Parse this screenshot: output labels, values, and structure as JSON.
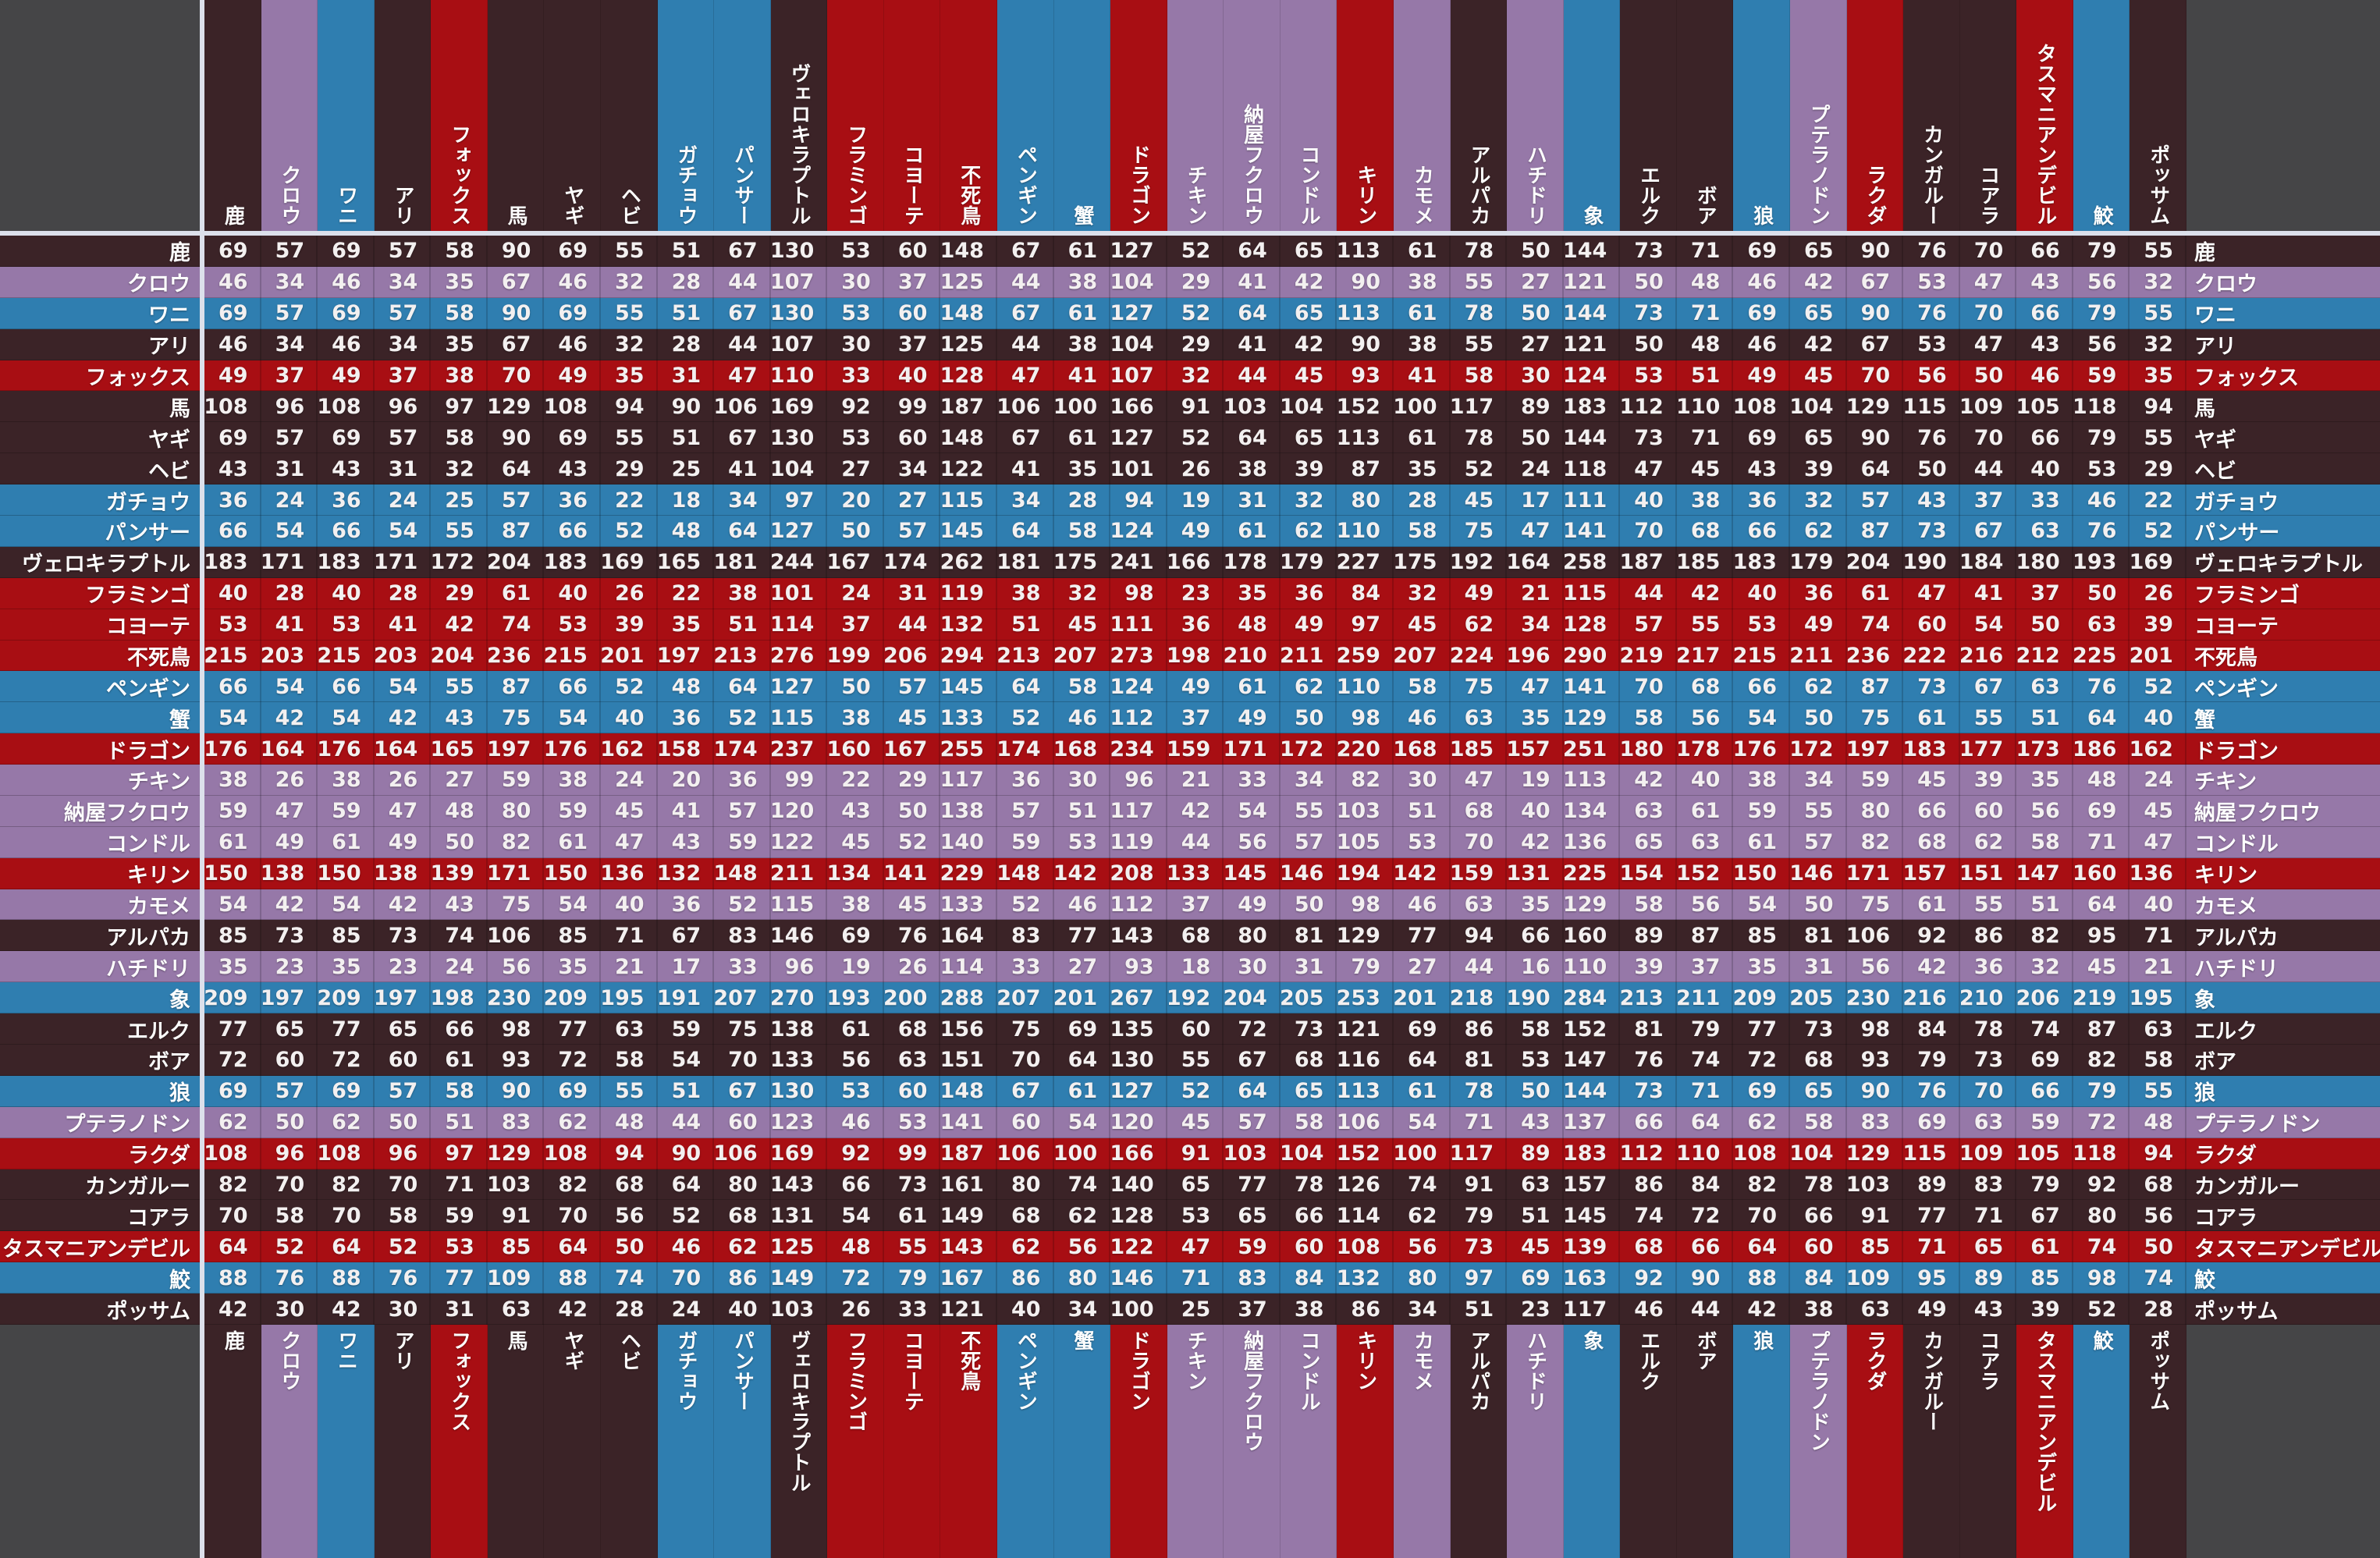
{
  "palette": {
    "dark": "#3B2327",
    "purple": "#9678A8",
    "blue": "#2F7EB0",
    "red": "#A80E13",
    "corner_gray": "#454547",
    "separator_white": "#DCE0EB",
    "number_text": "#F3F0F0",
    "label_text": "#FDFDFD"
  },
  "chart_data": {
    "type": "table",
    "title": "",
    "legend_position": "none",
    "grid": "subtle cell borders",
    "layout_hint": "35x35 matrix; identical animal list on top, bottom, left and right edges; header text vertical; each data row tinted with its animal's category color",
    "categories": [
      "鹿",
      "クロウ",
      "ワニ",
      "アリ",
      "フォックス",
      "馬",
      "ヤギ",
      "ヘビ",
      "ガチョウ",
      "パンサー",
      "ヴェロキラプトル",
      "フラミンゴ",
      "コヨーテ",
      "不死鳥",
      "ペンギン",
      "蟹",
      "ドラゴン",
      "チキン",
      "納屋フクロウ",
      "コンドル",
      "キリン",
      "カモメ",
      "アルパカ",
      "ハチドリ",
      "象",
      "エルク",
      "ボア",
      "狼",
      "プテラノドン",
      "ラクダ",
      "カンガルー",
      "コアラ",
      "タスマニアンデビル",
      "鮫",
      "ポッサム"
    ],
    "category_colors": [
      "dark",
      "purple",
      "blue",
      "dark",
      "red",
      "dark",
      "dark",
      "dark",
      "blue",
      "blue",
      "dark",
      "red",
      "red",
      "red",
      "blue",
      "blue",
      "red",
      "purple",
      "purple",
      "purple",
      "red",
      "purple",
      "dark",
      "purple",
      "blue",
      "dark",
      "dark",
      "blue",
      "purple",
      "red",
      "dark",
      "dark",
      "red",
      "blue",
      "dark"
    ],
    "matrix": [
      [
        69,
        57,
        69,
        57,
        58,
        90,
        69,
        55,
        51,
        67,
        130,
        53,
        60,
        148,
        67,
        61,
        127,
        52,
        64,
        65,
        113,
        61,
        78,
        50,
        144,
        73,
        71,
        69,
        65,
        90,
        76,
        70,
        66,
        79,
        55
      ],
      [
        46,
        34,
        46,
        34,
        35,
        67,
        46,
        32,
        28,
        44,
        107,
        30,
        37,
        125,
        44,
        38,
        104,
        29,
        41,
        42,
        90,
        38,
        55,
        27,
        121,
        50,
        48,
        46,
        42,
        67,
        53,
        47,
        43,
        56,
        32
      ],
      [
        69,
        57,
        69,
        57,
        58,
        90,
        69,
        55,
        51,
        67,
        130,
        53,
        60,
        148,
        67,
        61,
        127,
        52,
        64,
        65,
        113,
        61,
        78,
        50,
        144,
        73,
        71,
        69,
        65,
        90,
        76,
        70,
        66,
        79,
        55
      ],
      [
        46,
        34,
        46,
        34,
        35,
        67,
        46,
        32,
        28,
        44,
        107,
        30,
        37,
        125,
        44,
        38,
        104,
        29,
        41,
        42,
        90,
        38,
        55,
        27,
        121,
        50,
        48,
        46,
        42,
        67,
        53,
        47,
        43,
        56,
        32
      ],
      [
        49,
        37,
        49,
        37,
        38,
        70,
        49,
        35,
        31,
        47,
        110,
        33,
        40,
        128,
        47,
        41,
        107,
        32,
        44,
        45,
        93,
        41,
        58,
        30,
        124,
        53,
        51,
        49,
        45,
        70,
        56,
        50,
        46,
        59,
        35
      ],
      [
        108,
        96,
        108,
        96,
        97,
        129,
        108,
        94,
        90,
        106,
        169,
        92,
        99,
        187,
        106,
        100,
        166,
        91,
        103,
        104,
        152,
        100,
        117,
        89,
        183,
        112,
        110,
        108,
        104,
        129,
        115,
        109,
        105,
        118,
        94
      ],
      [
        69,
        57,
        69,
        57,
        58,
        90,
        69,
        55,
        51,
        67,
        130,
        53,
        60,
        148,
        67,
        61,
        127,
        52,
        64,
        65,
        113,
        61,
        78,
        50,
        144,
        73,
        71,
        69,
        65,
        90,
        76,
        70,
        66,
        79,
        55
      ],
      [
        43,
        31,
        43,
        31,
        32,
        64,
        43,
        29,
        25,
        41,
        104,
        27,
        34,
        122,
        41,
        35,
        101,
        26,
        38,
        39,
        87,
        35,
        52,
        24,
        118,
        47,
        45,
        43,
        39,
        64,
        50,
        44,
        40,
        53,
        29
      ],
      [
        36,
        24,
        36,
        24,
        25,
        57,
        36,
        22,
        18,
        34,
        97,
        20,
        27,
        115,
        34,
        28,
        94,
        19,
        31,
        32,
        80,
        28,
        45,
        17,
        111,
        40,
        38,
        36,
        32,
        57,
        43,
        37,
        33,
        46,
        22
      ],
      [
        66,
        54,
        66,
        54,
        55,
        87,
        66,
        52,
        48,
        64,
        127,
        50,
        57,
        145,
        64,
        58,
        124,
        49,
        61,
        62,
        110,
        58,
        75,
        47,
        141,
        70,
        68,
        66,
        62,
        87,
        73,
        67,
        63,
        76,
        52
      ],
      [
        183,
        171,
        183,
        171,
        172,
        204,
        183,
        169,
        165,
        181,
        244,
        167,
        174,
        262,
        181,
        175,
        241,
        166,
        178,
        179,
        227,
        175,
        192,
        164,
        258,
        187,
        185,
        183,
        179,
        204,
        190,
        184,
        180,
        193,
        169
      ],
      [
        40,
        28,
        40,
        28,
        29,
        61,
        40,
        26,
        22,
        38,
        101,
        24,
        31,
        119,
        38,
        32,
        98,
        23,
        35,
        36,
        84,
        32,
        49,
        21,
        115,
        44,
        42,
        40,
        36,
        61,
        47,
        41,
        37,
        50,
        26
      ],
      [
        53,
        41,
        53,
        41,
        42,
        74,
        53,
        39,
        35,
        51,
        114,
        37,
        44,
        132,
        51,
        45,
        111,
        36,
        48,
        49,
        97,
        45,
        62,
        34,
        128,
        57,
        55,
        53,
        49,
        74,
        60,
        54,
        50,
        63,
        39
      ],
      [
        215,
        203,
        215,
        203,
        204,
        236,
        215,
        201,
        197,
        213,
        276,
        199,
        206,
        294,
        213,
        207,
        273,
        198,
        210,
        211,
        259,
        207,
        224,
        196,
        290,
        219,
        217,
        215,
        211,
        236,
        222,
        216,
        212,
        225,
        201
      ],
      [
        66,
        54,
        66,
        54,
        55,
        87,
        66,
        52,
        48,
        64,
        127,
        50,
        57,
        145,
        64,
        58,
        124,
        49,
        61,
        62,
        110,
        58,
        75,
        47,
        141,
        70,
        68,
        66,
        62,
        87,
        73,
        67,
        63,
        76,
        52
      ],
      [
        54,
        42,
        54,
        42,
        43,
        75,
        54,
        40,
        36,
        52,
        115,
        38,
        45,
        133,
        52,
        46,
        112,
        37,
        49,
        50,
        98,
        46,
        63,
        35,
        129,
        58,
        56,
        54,
        50,
        75,
        61,
        55,
        51,
        64,
        40
      ],
      [
        176,
        164,
        176,
        164,
        165,
        197,
        176,
        162,
        158,
        174,
        237,
        160,
        167,
        255,
        174,
        168,
        234,
        159,
        171,
        172,
        220,
        168,
        185,
        157,
        251,
        180,
        178,
        176,
        172,
        197,
        183,
        177,
        173,
        186,
        162
      ],
      [
        38,
        26,
        38,
        26,
        27,
        59,
        38,
        24,
        20,
        36,
        99,
        22,
        29,
        117,
        36,
        30,
        96,
        21,
        33,
        34,
        82,
        30,
        47,
        19,
        113,
        42,
        40,
        38,
        34,
        59,
        45,
        39,
        35,
        48,
        24
      ],
      [
        59,
        47,
        59,
        47,
        48,
        80,
        59,
        45,
        41,
        57,
        120,
        43,
        50,
        138,
        57,
        51,
        117,
        42,
        54,
        55,
        103,
        51,
        68,
        40,
        134,
        63,
        61,
        59,
        55,
        80,
        66,
        60,
        56,
        69,
        45
      ],
      [
        61,
        49,
        61,
        49,
        50,
        82,
        61,
        47,
        43,
        59,
        122,
        45,
        52,
        140,
        59,
        53,
        119,
        44,
        56,
        57,
        105,
        53,
        70,
        42,
        136,
        65,
        63,
        61,
        57,
        82,
        68,
        62,
        58,
        71,
        47
      ],
      [
        150,
        138,
        150,
        138,
        139,
        171,
        150,
        136,
        132,
        148,
        211,
        134,
        141,
        229,
        148,
        142,
        208,
        133,
        145,
        146,
        194,
        142,
        159,
        131,
        225,
        154,
        152,
        150,
        146,
        171,
        157,
        151,
        147,
        160,
        136
      ],
      [
        54,
        42,
        54,
        42,
        43,
        75,
        54,
        40,
        36,
        52,
        115,
        38,
        45,
        133,
        52,
        46,
        112,
        37,
        49,
        50,
        98,
        46,
        63,
        35,
        129,
        58,
        56,
        54,
        50,
        75,
        61,
        55,
        51,
        64,
        40
      ],
      [
        85,
        73,
        85,
        73,
        74,
        106,
        85,
        71,
        67,
        83,
        146,
        69,
        76,
        164,
        83,
        77,
        143,
        68,
        80,
        81,
        129,
        77,
        94,
        66,
        160,
        89,
        87,
        85,
        81,
        106,
        92,
        86,
        82,
        95,
        71
      ],
      [
        35,
        23,
        35,
        23,
        24,
        56,
        35,
        21,
        17,
        33,
        96,
        19,
        26,
        114,
        33,
        27,
        93,
        18,
        30,
        31,
        79,
        27,
        44,
        16,
        110,
        39,
        37,
        35,
        31,
        56,
        42,
        36,
        32,
        45,
        21
      ],
      [
        209,
        197,
        209,
        197,
        198,
        230,
        209,
        195,
        191,
        207,
        270,
        193,
        200,
        288,
        207,
        201,
        267,
        192,
        204,
        205,
        253,
        201,
        218,
        190,
        284,
        213,
        211,
        209,
        205,
        230,
        216,
        210,
        206,
        219,
        195
      ],
      [
        77,
        65,
        77,
        65,
        66,
        98,
        77,
        63,
        59,
        75,
        138,
        61,
        68,
        156,
        75,
        69,
        135,
        60,
        72,
        73,
        121,
        69,
        86,
        58,
        152,
        81,
        79,
        77,
        73,
        98,
        84,
        78,
        74,
        87,
        63
      ],
      [
        72,
        60,
        72,
        60,
        61,
        93,
        72,
        58,
        54,
        70,
        133,
        56,
        63,
        151,
        70,
        64,
        130,
        55,
        67,
        68,
        116,
        64,
        81,
        53,
        147,
        76,
        74,
        72,
        68,
        93,
        79,
        73,
        69,
        82,
        58
      ],
      [
        69,
        57,
        69,
        57,
        58,
        90,
        69,
        55,
        51,
        67,
        130,
        53,
        60,
        148,
        67,
        61,
        127,
        52,
        64,
        65,
        113,
        61,
        78,
        50,
        144,
        73,
        71,
        69,
        65,
        90,
        76,
        70,
        66,
        79,
        55
      ],
      [
        62,
        50,
        62,
        50,
        51,
        83,
        62,
        48,
        44,
        60,
        123,
        46,
        53,
        141,
        60,
        54,
        120,
        45,
        57,
        58,
        106,
        54,
        71,
        43,
        137,
        66,
        64,
        62,
        58,
        83,
        69,
        63,
        59,
        72,
        48
      ],
      [
        108,
        96,
        108,
        96,
        97,
        129,
        108,
        94,
        90,
        106,
        169,
        92,
        99,
        187,
        106,
        100,
        166,
        91,
        103,
        104,
        152,
        100,
        117,
        89,
        183,
        112,
        110,
        108,
        104,
        129,
        115,
        109,
        105,
        118,
        94
      ],
      [
        82,
        70,
        82,
        70,
        71,
        103,
        82,
        68,
        64,
        80,
        143,
        66,
        73,
        161,
        80,
        74,
        140,
        65,
        77,
        78,
        126,
        74,
        91,
        63,
        157,
        86,
        84,
        82,
        78,
        103,
        89,
        83,
        79,
        92,
        68
      ],
      [
        70,
        58,
        70,
        58,
        59,
        91,
        70,
        56,
        52,
        68,
        131,
        54,
        61,
        149,
        68,
        62,
        128,
        53,
        65,
        66,
        114,
        62,
        79,
        51,
        145,
        74,
        72,
        70,
        66,
        91,
        77,
        71,
        67,
        80,
        56
      ],
      [
        64,
        52,
        64,
        52,
        53,
        85,
        64,
        50,
        46,
        62,
        125,
        48,
        55,
        143,
        62,
        56,
        122,
        47,
        59,
        60,
        108,
        56,
        73,
        45,
        139,
        68,
        66,
        64,
        60,
        85,
        71,
        65,
        61,
        74,
        50
      ],
      [
        88,
        76,
        88,
        76,
        77,
        109,
        88,
        74,
        70,
        86,
        149,
        72,
        79,
        167,
        86,
        80,
        146,
        71,
        83,
        84,
        132,
        80,
        97,
        69,
        163,
        92,
        90,
        88,
        84,
        109,
        95,
        89,
        85,
        98,
        74
      ],
      [
        42,
        30,
        42,
        30,
        31,
        63,
        42,
        28,
        24,
        40,
        103,
        26,
        33,
        121,
        40,
        34,
        100,
        25,
        37,
        38,
        86,
        34,
        51,
        23,
        117,
        46,
        44,
        42,
        38,
        63,
        49,
        43,
        39,
        52,
        28
      ]
    ]
  }
}
